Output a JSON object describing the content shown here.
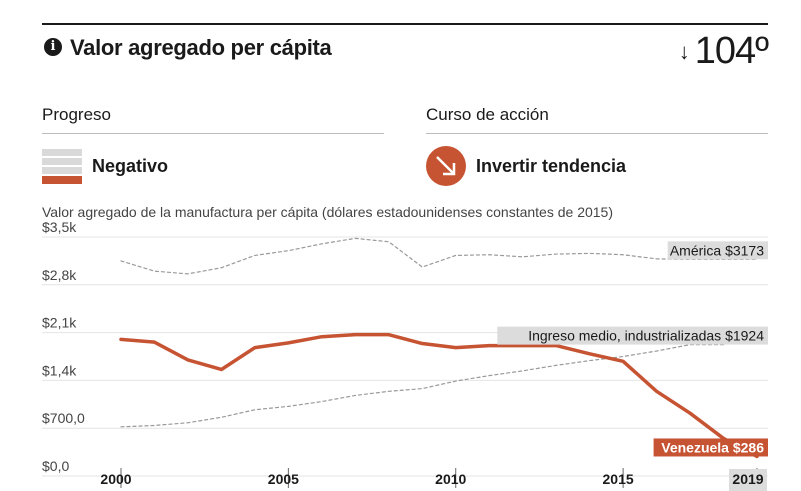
{
  "header": {
    "info_icon": "info-icon",
    "title": "Valor agregado per cápita",
    "rank_arrow": "↓",
    "rank": "104º"
  },
  "progress": {
    "heading": "Progreso",
    "status": "Negativo"
  },
  "action": {
    "heading": "Curso de acción",
    "status": "Invertir tendencia",
    "icon": "arrow-down-right-icon"
  },
  "chart_data": {
    "type": "line",
    "title": "Valor agregado de la manufactura per cápita (dólares estadounidenses constantes de 2015)",
    "y_ticks": [
      "$3,5k",
      "$2,8k",
      "$2,1k",
      "$1,4k",
      "$700,0",
      "$0,0"
    ],
    "y_tick_values": [
      3500,
      2800,
      2100,
      1400,
      700,
      0
    ],
    "ylim": [
      0,
      3500
    ],
    "xlim": [
      2000,
      2019
    ],
    "x_ticks": [
      "2000",
      "2005",
      "2010",
      "2015",
      "2019"
    ],
    "x_tick_values": [
      2000,
      2005,
      2010,
      2015,
      2019
    ],
    "highlight_year": "2019",
    "colors": {
      "accent": "#c65332",
      "reference": "#999999",
      "grid": "#e4e4e4"
    },
    "series": [
      {
        "name": "América",
        "end_label": "América $3173",
        "style": "dashed",
        "x": [
          2000,
          2001,
          2002,
          2003,
          2004,
          2005,
          2006,
          2007,
          2008,
          2009,
          2010,
          2011,
          2012,
          2013,
          2014,
          2015,
          2016,
          2017,
          2018,
          2019
        ],
        "values": [
          3150,
          3000,
          2960,
          3050,
          3230,
          3300,
          3400,
          3480,
          3430,
          3060,
          3230,
          3240,
          3210,
          3250,
          3260,
          3240,
          3180,
          3173,
          3173,
          3173
        ]
      },
      {
        "name": "Ingreso medio, industrializadas",
        "end_label": "Ingreso medio, industrializadas $1924",
        "style": "dashed",
        "x": [
          2000,
          2001,
          2002,
          2003,
          2004,
          2005,
          2006,
          2007,
          2008,
          2009,
          2010,
          2011,
          2012,
          2013,
          2014,
          2015,
          2016,
          2017,
          2018
        ],
        "values": [
          720,
          740,
          780,
          860,
          970,
          1020,
          1090,
          1180,
          1240,
          1280,
          1390,
          1470,
          1540,
          1620,
          1690,
          1750,
          1830,
          1924,
          1924
        ]
      },
      {
        "name": "Venezuela",
        "end_label": "Venezuela $286",
        "style": "solid",
        "highlight": true,
        "x": [
          2000,
          2001,
          2002,
          2003,
          2004,
          2005,
          2006,
          2007,
          2008,
          2009,
          2010,
          2011,
          2012,
          2013,
          2014,
          2015,
          2016,
          2017,
          2018,
          2019
        ],
        "values": [
          2000,
          1960,
          1700,
          1560,
          1880,
          1950,
          2040,
          2070,
          2070,
          1940,
          1880,
          1910,
          1910,
          1910,
          1790,
          1680,
          1240,
          920,
          550,
          286
        ]
      }
    ]
  }
}
